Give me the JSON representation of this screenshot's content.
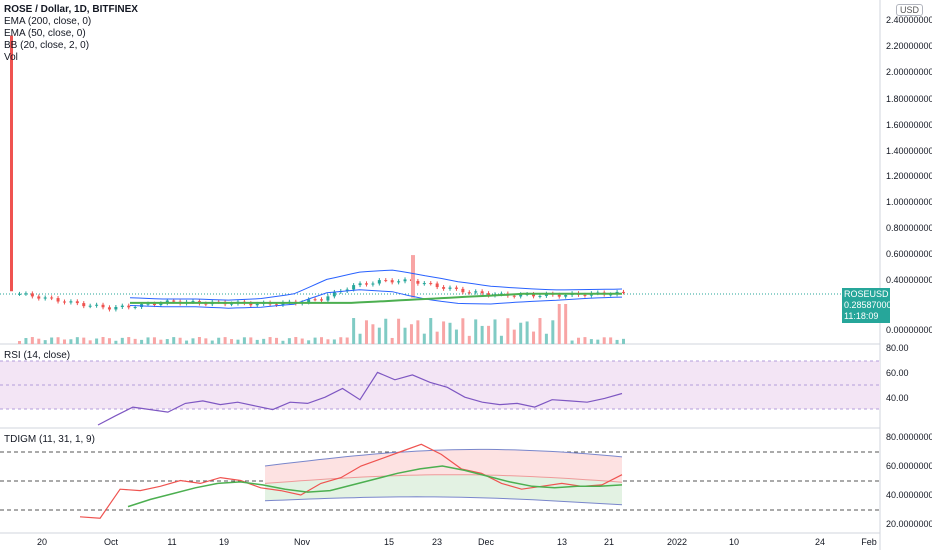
{
  "legend": {
    "symbol": "ROSE / Dollar, 1D, BITFINEX",
    "ema200": "EMA (200, close, 0)",
    "ema50": "EMA (50, close, 0)",
    "bb": "BB (20, close, 2, 0)",
    "vol": "Vol"
  },
  "currency_badge": "USD",
  "price_tag": {
    "symbol": "ROSEUSD",
    "price": "0.28587000",
    "countdown": "11:18:09"
  },
  "rsi_label": "RSI (14, close)",
  "tdigm_label": "TDIGM (11, 31, 1, 9)",
  "main_axis_ticks": [
    "2.40000000",
    "2.20000000",
    "2.00000000",
    "1.80000000",
    "1.60000000",
    "1.40000000",
    "1.20000000",
    "1.00000000",
    "0.80000000",
    "0.60000000",
    "0.40000000",
    "0.00000000"
  ],
  "rsi_axis_ticks": [
    "80.00",
    "60.00",
    "40.00"
  ],
  "tdigm_axis_ticks": [
    "80.0000000",
    "60.0000000",
    "40.0000000",
    "20.0000000"
  ],
  "time_axis_ticks": [
    "20",
    "Oct",
    "11",
    "19",
    "Nov",
    "15",
    "23",
    "Dec",
    "13",
    "21",
    "2022",
    "10",
    "24",
    "Feb"
  ],
  "colors": {
    "up": "#26a69a",
    "down": "#ef5350",
    "bb": "#2962ff",
    "ema50": "#ff9800",
    "ema200": "#4caf50",
    "rsi": "#7e57c2",
    "rsi_band": "#e1bee7",
    "tdigm_upper": "#ffcdd2",
    "tdigm_lower": "#c8e6c9"
  },
  "chart_data": [
    {
      "type": "candlestick",
      "title": "ROSE / Dollar, 1D, BITFINEX",
      "ylim": [
        0,
        2.4
      ],
      "x": [
        "Sep 15",
        "Sep 20",
        "Sep 25",
        "Oct 1",
        "Oct 6",
        "Oct 11",
        "Oct 19",
        "Oct 25",
        "Nov 1",
        "Nov 8",
        "Nov 15",
        "Nov 18",
        "Nov 20",
        "Nov 23",
        "Nov 26",
        "Dec 1",
        "Dec 6",
        "Dec 13",
        "Dec 17",
        "Dec 21",
        "Dec 23"
      ],
      "close": [
        0.28,
        0.24,
        0.2,
        0.17,
        0.19,
        0.22,
        0.21,
        0.21,
        0.2,
        0.21,
        0.24,
        0.34,
        0.38,
        0.38,
        0.33,
        0.29,
        0.27,
        0.27,
        0.27,
        0.28,
        0.286
      ],
      "spike_high": 2.28,
      "spike_high_2": 0.58
    },
    {
      "type": "line",
      "title": "RSI (14, close)",
      "ylim": [
        30,
        80
      ],
      "values": [
        22,
        35,
        42,
        40,
        38,
        45,
        47,
        44,
        46,
        43,
        40,
        46,
        45,
        50,
        57,
        48,
        70,
        64,
        68,
        62,
        58,
        50,
        46,
        44,
        45,
        42,
        48,
        47,
        46,
        49,
        53
      ],
      "band": [
        30,
        70
      ]
    },
    {
      "type": "line",
      "title": "TDIGM (11, 31, 1, 9)",
      "ylim": [
        20,
        80
      ],
      "series": [
        {
          "values": [
            25,
            24,
            44,
            43,
            46,
            50,
            48,
            52,
            50,
            45,
            43,
            40,
            48,
            52,
            60,
            65,
            70,
            75,
            68,
            58,
            55,
            48,
            44,
            46,
            48,
            46,
            47,
            54
          ]
        },
        {
          "values": [
            32,
            37,
            41,
            45,
            48,
            49,
            47,
            44,
            42,
            43,
            47,
            51,
            55,
            58,
            60,
            57,
            53,
            49,
            46,
            45,
            46,
            46,
            47
          ]
        }
      ],
      "guides": [
        30,
        50,
        70
      ]
    }
  ]
}
